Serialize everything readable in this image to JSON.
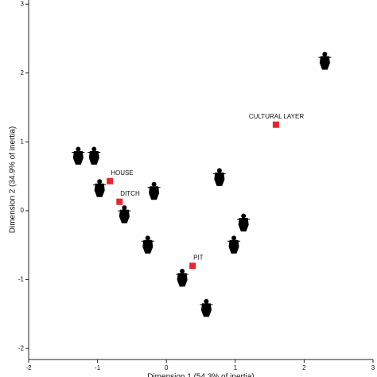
{
  "chart_data": {
    "type": "scatter",
    "x_label": "Dimension 1 (54.3% of inertia)",
    "y_label": "Dimension 2 (34.9% of inertia)",
    "xlim": [
      -2,
      3
    ],
    "ylim": [
      -2.16,
      3.06
    ],
    "xticks": [
      -2,
      -1,
      0,
      1,
      2,
      3
    ],
    "yticks": [
      -2,
      -1,
      0,
      1,
      2,
      3
    ],
    "series": [
      {
        "marker": "figurine",
        "color": "#000000",
        "x": [
          -1.28,
          -1.05,
          -0.97,
          -0.18,
          -0.61,
          -0.27,
          0.77,
          1.12,
          0.98,
          0.23,
          0.58,
          2.3
        ],
        "y": [
          0.79,
          0.79,
          0.32,
          0.28,
          -0.06,
          -0.5,
          0.48,
          -0.18,
          -0.5,
          -0.98,
          -1.42,
          2.17
        ]
      },
      {
        "marker": "square",
        "color": "#e8252b",
        "labels": [
          "HOUSE",
          "DITCH",
          "PIT",
          "CULTURAL LAYER"
        ],
        "x": [
          -0.82,
          -0.68,
          0.38,
          1.59
        ],
        "y": [
          0.43,
          0.13,
          -0.8,
          1.25
        ]
      }
    ]
  }
}
